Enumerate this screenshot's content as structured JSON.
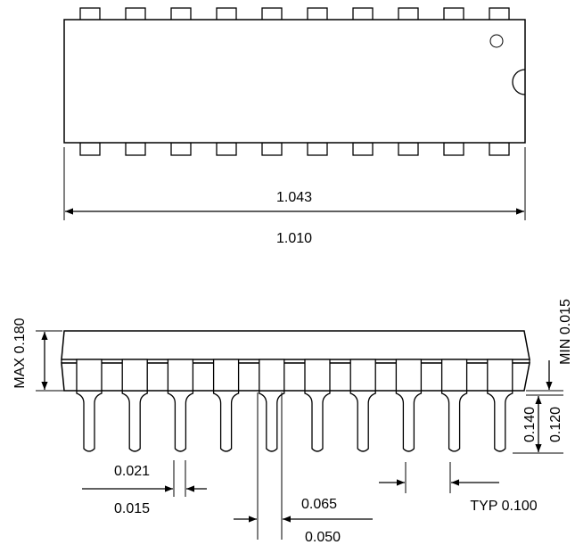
{
  "top_view": {
    "length_max_label": "1.043",
    "length_min_label": "1.010",
    "pins_per_side": 10
  },
  "side_view": {
    "height_label": "MAX 0.180",
    "standoff_label": "MIN 0.015",
    "lead_length_max_label": "0.140",
    "lead_length_min_label": "0.120",
    "lead_width_max_label": "0.021",
    "lead_width_min_label": "0.015",
    "shoulder_max_label": "0.065",
    "shoulder_min_label": "0.050",
    "pitch_label": "TYP 0.100",
    "pins_visible": 10
  }
}
